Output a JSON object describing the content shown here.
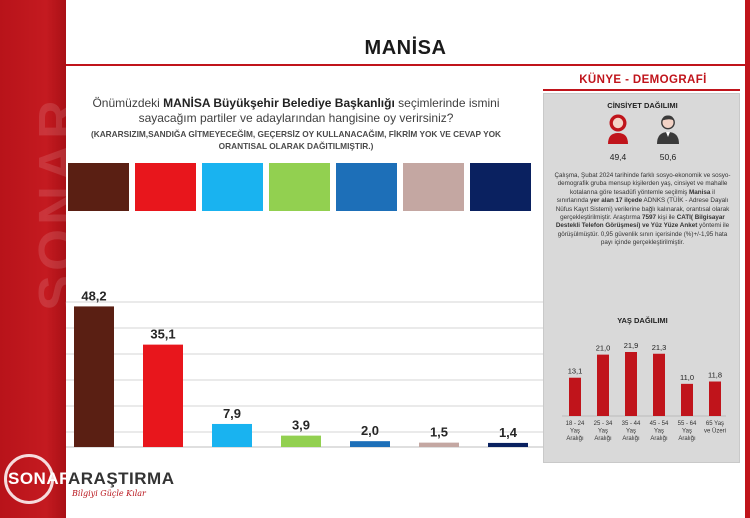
{
  "page": {
    "title": "MANİSA"
  },
  "question": {
    "pre": "Önümüzdeki ",
    "bold": "MANİSA Büyükşehir Belediye Başkanlığı",
    "post": " seçimlerinde ismini sayacağım partiler ve adaylarından hangisine oy verirsiniz?",
    "note": "(KARARSIZIM,SANDIĞA GİTMEYECEĞİM, GEÇERSİZ OY KULLANACAĞIM, FİKRİM YOK VE CEVAP YOK ORANTISAL OLARAK DAĞITILMIŞTIR.)"
  },
  "logo": {
    "name_part1": "SONAR",
    "name_part2": "ARAŞTIRMA",
    "tagline": "Bilgiyi Güçle Kılar",
    "band_wordmark": "SONAR"
  },
  "colors": {
    "brand_red": "#c0141b",
    "axis_gray": "#bfbfbf",
    "age_bar_red": "#c0141b"
  },
  "chart_data": [
    {
      "type": "bar",
      "title": "",
      "xlabel": "",
      "ylabel": "",
      "categories": [
        "",
        "",
        "",
        "",
        "",
        "",
        ""
      ],
      "values": [
        48.2,
        35.1,
        7.9,
        3.9,
        2.0,
        1.5,
        1.4
      ],
      "labels": [
        "48,2",
        "35,1",
        "7,9",
        "3,9",
        "2,0",
        "1,5",
        "1,4"
      ],
      "colors": [
        "#5a1f13",
        "#e8161c",
        "#19b3f0",
        "#92d050",
        "#1d6fb8",
        "#c4a7a2",
        "#0a2160"
      ],
      "ylim": [
        0,
        60
      ],
      "grid": true
    },
    {
      "type": "bar",
      "title": "YAŞ DAĞILIMI",
      "categories": [
        "18 - 24 Yaş Aralığı",
        "25 - 34 Yaş Aralığı",
        "35 - 44 Yaş Aralığı",
        "45 - 54 Yaş Aralığı",
        "55 - 64 Yaş Aralığı",
        "65 Yaş ve Üzeri"
      ],
      "category_lines": [
        [
          "18 - 24",
          "Yaş",
          "Aralığı"
        ],
        [
          "25 - 34",
          "Yaş",
          "Aralığı"
        ],
        [
          "35 - 44",
          "Yaş",
          "Aralığı"
        ],
        [
          "45 - 54",
          "Yaş",
          "Aralığı"
        ],
        [
          "55 - 64",
          "Yaş",
          "Aralığı"
        ],
        [
          "65 Yaş",
          "ve Üzeri"
        ]
      ],
      "values": [
        13.1,
        21.0,
        21.9,
        21.3,
        11.0,
        11.8
      ],
      "labels": [
        "13,1",
        "21,0",
        "21,9",
        "21,3",
        "11,0",
        "11,8"
      ],
      "ylim": [
        0,
        30
      ]
    }
  ],
  "panel": {
    "title": "KÜNYE - DEMOGRAFİ",
    "gender": {
      "title": "CİNSİYET DAĞILIMI",
      "female_value": "49,4",
      "male_value": "50,6",
      "female_color": "#c0141b",
      "male_color": "#3a3a3a"
    },
    "description": [
      {
        "t": "Çalışma, Şubat 2024 tarihinde farklı sosyo-ekonomik ve sosyo-demografik gruba mensup kişilerden yaş, cinsiyet ve mahalle kotalarına göre tesadüfi yöntemle seçilmiş ",
        "b": false
      },
      {
        "t": "Manisa",
        "b": true
      },
      {
        "t": " il sınırlarında ",
        "b": false
      },
      {
        "t": "yer alan 17 ilçede",
        "b": true
      },
      {
        "t": " ADNKS (TÜİK - Adrese Dayalı Nüfus Kayıt Sistemi) verilerine bağlı kalınarak, orantısal olarak gerçekleştirilmiştir. Araştırma ",
        "b": false
      },
      {
        "t": "7597",
        "b": true
      },
      {
        "t": " kişi ile ",
        "b": false
      },
      {
        "t": "CATI( Bilgisayar Destekli Telefon Görüşmesi) ve Yüz Yüze Anket",
        "b": true
      },
      {
        "t": " yöntemi ile görüşülmüştür. 0,95 güvenlik sınırı içerisinde (%)+/-1,95 hata payı içinde gerçekleştirilmiştir.",
        "b": false
      }
    ],
    "age_title": "YAŞ DAĞILIMI"
  },
  "swatches": [
    "#5a1f13",
    "#e8161c",
    "#19b3f0",
    "#92d050",
    "#1d6fb8",
    "#c4a7a2",
    "#0a2160"
  ]
}
